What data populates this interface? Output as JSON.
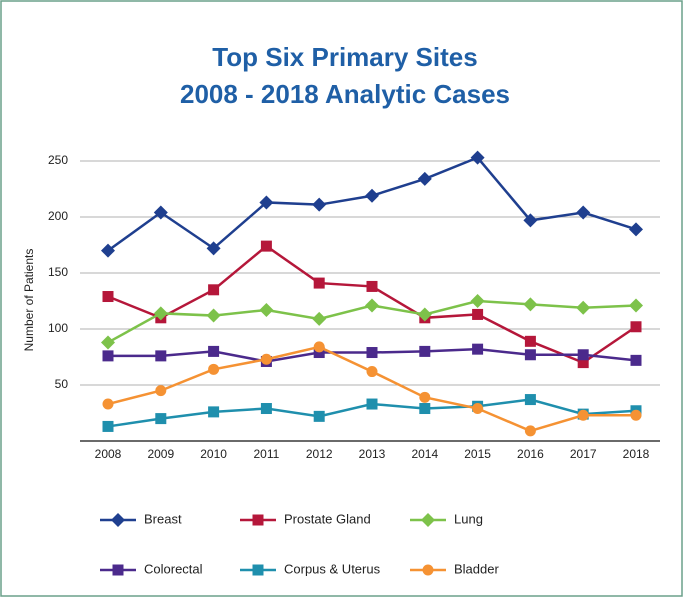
{
  "chart_data": {
    "type": "line",
    "title": [
      "Top Six Primary Sites",
      "2008 - 2018 Analytic Cases"
    ],
    "y_label": "Number of Patients",
    "categories": [
      "2008",
      "2009",
      "2010",
      "2011",
      "2012",
      "2013",
      "2014",
      "2015",
      "2016",
      "2017",
      "2018"
    ],
    "ylim": [
      0,
      250
    ],
    "yticks": [
      50,
      100,
      150,
      200,
      250
    ],
    "grid": true,
    "series": [
      {
        "name": "Breast",
        "color": "#1f3f8f",
        "marker": "diamond",
        "values": [
          170,
          204,
          172,
          213,
          211,
          219,
          234,
          253,
          197,
          204,
          189
        ]
      },
      {
        "name": "Prostate Gland",
        "color": "#b5173a",
        "marker": "square",
        "values": [
          129,
          110,
          135,
          174,
          141,
          138,
          110,
          113,
          89,
          70,
          102
        ]
      },
      {
        "name": "Lung",
        "color": "#7dc24a",
        "marker": "diamond",
        "values": [
          88,
          114,
          112,
          117,
          109,
          121,
          113,
          125,
          122,
          119,
          121
        ]
      },
      {
        "name": "Colorectal",
        "color": "#4b2a8c",
        "marker": "square",
        "values": [
          76,
          76,
          80,
          71,
          79,
          79,
          80,
          82,
          77,
          77,
          72
        ]
      },
      {
        "name": "Corpus & Uterus",
        "color": "#1f8fad",
        "marker": "square",
        "values": [
          13,
          20,
          26,
          29,
          22,
          33,
          29,
          31,
          37,
          24,
          27
        ]
      },
      {
        "name": "Bladder",
        "color": "#f59233",
        "marker": "circle",
        "values": [
          33,
          45,
          64,
          73,
          84,
          62,
          39,
          29,
          9,
          23,
          23
        ]
      }
    ]
  }
}
